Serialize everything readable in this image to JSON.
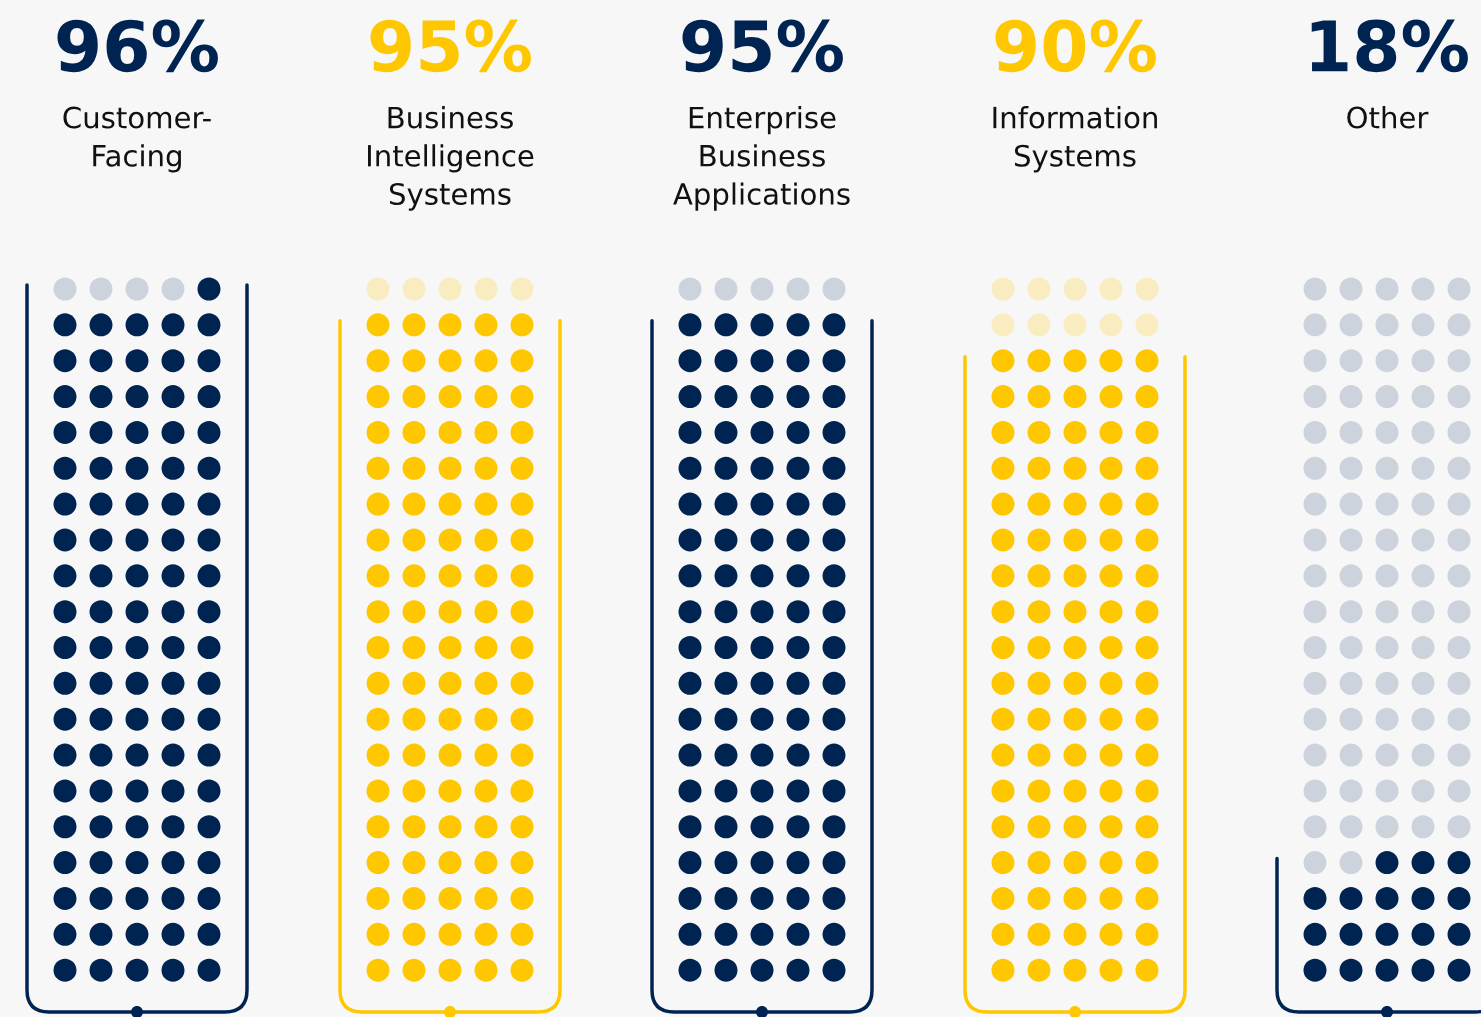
{
  "chart_data": {
    "type": "other",
    "categories": [
      "Customer-\nFacing",
      "Business\nIntelligence\nSystems",
      "Enterprise\nBusiness\nApplications",
      "Information\nSystems",
      "Other"
    ],
    "values": [
      96,
      95,
      95,
      90,
      18
    ],
    "value_labels": [
      "96%",
      "95%",
      "95%",
      "90%",
      "18%"
    ],
    "colors": [
      "#002451",
      "#ffc700",
      "#002451",
      "#ffc700",
      "#002451"
    ]
  }
}
